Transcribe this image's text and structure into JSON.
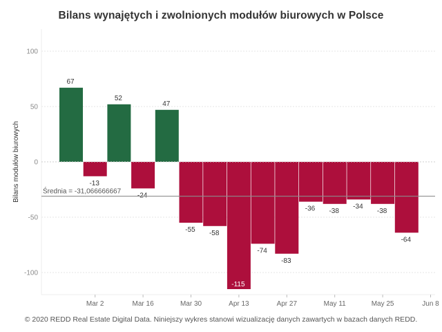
{
  "title": "Bilans wynajętych i zwolnionych modułów biurowych w Polsce",
  "footer": "© 2020 REDD Real Estate Digital Data. Niniejszy wykres stanowi wizualizację danych zawartych w bazach danych REDD.",
  "colors": {
    "positive": "#236b42",
    "negative": "#ad0f3c",
    "avg_line": "#8c8c8c",
    "grid": "#e6e6e6"
  },
  "chart_data": {
    "type": "bar",
    "title": "Bilans wynajętych i zwolnionych modułów biurowych w Polsce",
    "xlabel": "",
    "ylabel": "Bilans modułów biurowych",
    "ylim": [
      -120,
      120
    ],
    "yticks": [
      100,
      50,
      0,
      -50,
      -100
    ],
    "x_tick_labels": [
      "Mar 2",
      "Mar 16",
      "Mar 30",
      "Apr 13",
      "Apr 27",
      "May 11",
      "May 25",
      "Jun 8"
    ],
    "values": [
      67,
      -13,
      52,
      -24,
      47,
      -55,
      -58,
      -115,
      -74,
      -83,
      -36,
      -38,
      -34,
      -38,
      -64
    ],
    "average": {
      "label": "Średnia = -31,066666667",
      "value": -31.066666667
    },
    "grid": true,
    "legend": "none"
  }
}
